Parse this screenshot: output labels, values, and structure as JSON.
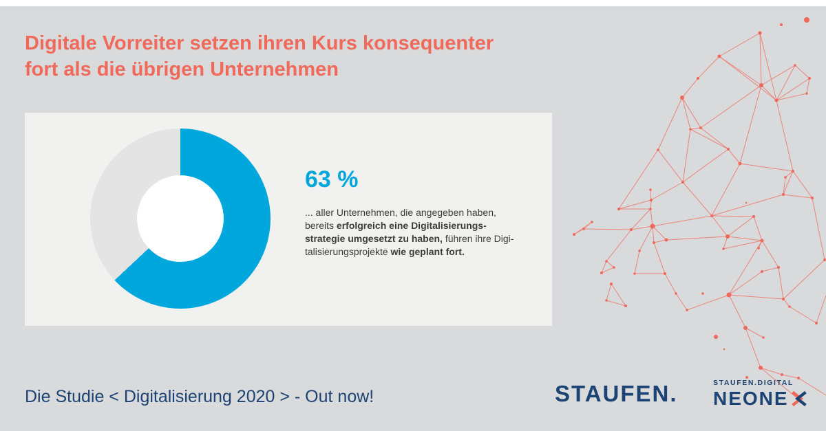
{
  "theme": {
    "page_bg": "#D9DADB",
    "top_strip": "#FFFFFF",
    "card_bg": "#F1F1F0",
    "coral": "#F0695A",
    "navy": "#1B4373",
    "blue": "#00A7DC",
    "track_gray": "#E4E4E4",
    "text_dark": "#3C3C3B"
  },
  "title": {
    "lines": [
      "Digitale Vorreiter setzen ihren Kurs konsequenter",
      "fort als die übrigen Unternehmen"
    ]
  },
  "stat": {
    "value_label": "63 %",
    "description_lines": [
      [
        {
          "t": "... aller Unternehmen, die angegeben haben,",
          "b": false
        }
      ],
      [
        {
          "t": "bereits ",
          "b": false
        },
        {
          "t": "erfolgreich eine Digitalisierungs-",
          "b": true
        }
      ],
      [
        {
          "t": "strategie umgesetzt zu haben,",
          "b": true
        },
        {
          "t": " führen ihre Digi-",
          "b": false
        }
      ],
      [
        {
          "t": "talisierungsprojekte ",
          "b": false
        },
        {
          "t": "wie geplant fort.",
          "b": true
        }
      ]
    ]
  },
  "chart_data": {
    "type": "pie",
    "subtype": "donut",
    "start_angle_deg": 0,
    "direction": "clockwise",
    "slices": [
      {
        "label": "63 %",
        "value": 63,
        "color": "#00A7DC"
      },
      {
        "label": "",
        "value": 37,
        "color": "#E4E4E4"
      }
    ],
    "value_label": "63 %",
    "annotation": "... aller Unternehmen, die angegeben haben, bereits erfolgreich eine Digitalisierungsstrategie umgesetzt zu haben, führen ihre Digitalisierungsprojekte wie geplant fort.",
    "legend": "none",
    "grid": false
  },
  "footer": {
    "text": "Die Studie < Digitalisierung 2020 > - Out now!"
  },
  "branding": {
    "staufen_wordmark": "STAUFEN.",
    "neonex_overline": "STAUFEN.DIGITAL",
    "neonex_wordmark_prefix": "NEONE",
    "neonex_wordmark_last_letter": "X"
  },
  "decoration": {
    "network_color": "#F0685A"
  }
}
